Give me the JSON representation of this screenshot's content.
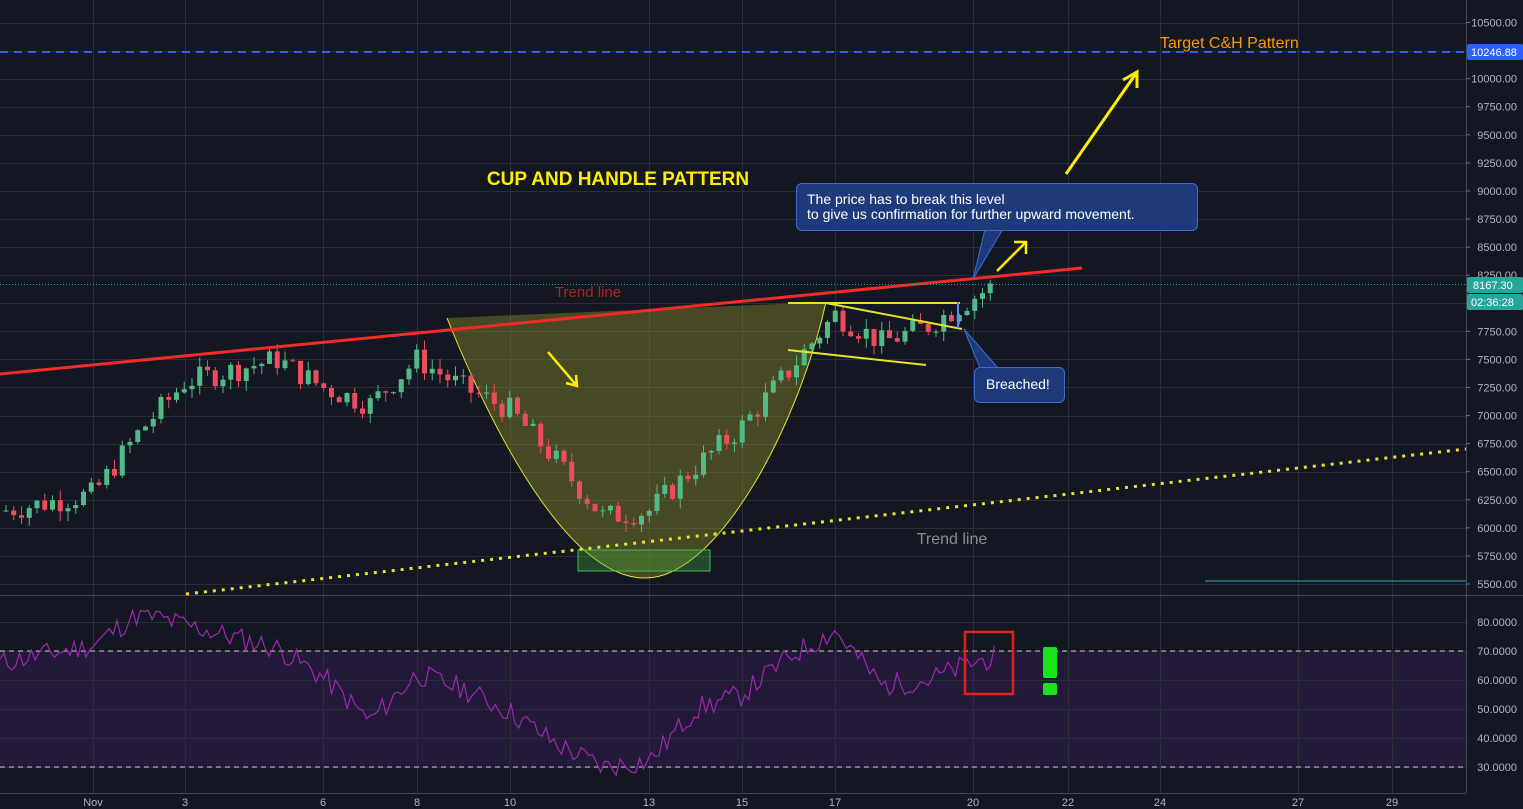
{
  "chart_data": [
    {
      "type": "candlestick",
      "title": "CUP AND HANDLE PATTERN",
      "x_ticks": [
        "Nov",
        "3",
        "6",
        "8",
        "10",
        "13",
        "15",
        "17",
        "20",
        "22",
        "24",
        "27",
        "29"
      ],
      "y_ticks": [
        "10500.00",
        "10250.00",
        "10000.00",
        "9750.00",
        "9500.00",
        "9250.00",
        "9000.00",
        "8750.00",
        "8500.00",
        "8250.00",
        "8000.00",
        "7750.00",
        "7500.00",
        "7250.00",
        "7000.00",
        "6750.00",
        "6500.00",
        "6250.00",
        "6000.00",
        "5750.00",
        "5500.00"
      ],
      "ylim": [
        5450,
        10650
      ],
      "grid": true,
      "price_labels": {
        "target": "10246.88",
        "last": "8167.30",
        "countdown": "02:36:28"
      },
      "approx_close_path": [
        {
          "x": "Oct 31",
          "y": 6150
        },
        {
          "x": "Nov 1",
          "y": 6300
        },
        {
          "x": "Nov 2",
          "y": 6850
        },
        {
          "x": "Nov 3",
          "y": 7300
        },
        {
          "x": "Nov 5",
          "y": 7500
        },
        {
          "x": "Nov 6",
          "y": 7250
        },
        {
          "x": "Nov 7",
          "y": 7100
        },
        {
          "x": "Nov 8",
          "y": 7500
        },
        {
          "x": "Nov 9",
          "y": 7250
        },
        {
          "x": "Nov 10",
          "y": 7050
        },
        {
          "x": "Nov 11",
          "y": 6600
        },
        {
          "x": "Nov 12",
          "y": 6100
        },
        {
          "x": "Nov 13",
          "y": 6150
        },
        {
          "x": "Nov 14",
          "y": 6550
        },
        {
          "x": "Nov 15",
          "y": 6900
        },
        {
          "x": "Nov 16",
          "y": 7400
        },
        {
          "x": "Nov 17",
          "y": 7900
        },
        {
          "x": "Nov 18",
          "y": 7650
        },
        {
          "x": "Nov 19",
          "y": 7800
        },
        {
          "x": "Nov 20",
          "y": 8050
        },
        {
          "x": "Nov 20",
          "y": 8167.3
        }
      ],
      "annotations": {
        "target_label": "Target C&H Pattern",
        "trend_line_red": "Trend line",
        "trend_line_gray": "Trend line",
        "callout_line1": "The price has to break this level",
        "callout_line2": "to give us confirmation for further upward movement.",
        "breached": "Breached!"
      }
    },
    {
      "type": "line",
      "y_ticks": [
        "80.0000",
        "70.0000",
        "60.0000",
        "50.0000",
        "40.0000",
        "30.0000"
      ],
      "ylim": [
        25,
        85
      ],
      "levels": [
        70,
        30
      ],
      "approx_values": [
        {
          "x": "Oct 31",
          "y": 66
        },
        {
          "x": "Nov 1",
          "y": 72
        },
        {
          "x": "Nov 2",
          "y": 83
        },
        {
          "x": "Nov 3",
          "y": 79
        },
        {
          "x": "Nov 5",
          "y": 71
        },
        {
          "x": "Nov 6",
          "y": 61
        },
        {
          "x": "Nov 7",
          "y": 46
        },
        {
          "x": "Nov 8",
          "y": 62
        },
        {
          "x": "Nov 9",
          "y": 57
        },
        {
          "x": "Nov 10",
          "y": 49
        },
        {
          "x": "Nov 11",
          "y": 38
        },
        {
          "x": "Nov 12",
          "y": 30
        },
        {
          "x": "Nov 13",
          "y": 32
        },
        {
          "x": "Nov 14",
          "y": 50
        },
        {
          "x": "Nov 15",
          "y": 55
        },
        {
          "x": "Nov 16",
          "y": 68
        },
        {
          "x": "Nov 17",
          "y": 77
        },
        {
          "x": "Nov 18",
          "y": 58
        },
        {
          "x": "Nov 19",
          "y": 60
        },
        {
          "x": "Nov 20",
          "y": 66
        },
        {
          "x": "Nov 20",
          "y": 68
        }
      ],
      "alert_mark": "!"
    }
  ]
}
